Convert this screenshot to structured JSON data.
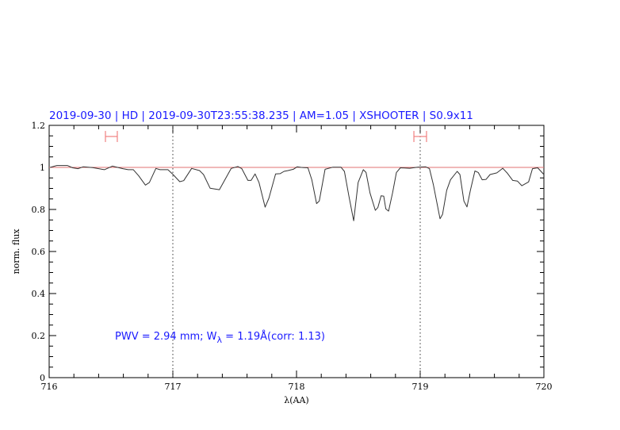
{
  "chart_data": {
    "type": "line",
    "title": "2019-09-30 | HD | 2019-09-30T23:55:38.235 | AM=1.05 | XSHOOTER | S0.9x11",
    "xlabel": "λ(AA)",
    "ylabel": "norm. flux",
    "xlim": [
      716,
      720
    ],
    "ylim": [
      0,
      1.2
    ],
    "x_ticks": [
      "716",
      "717",
      "718",
      "719",
      "720"
    ],
    "y_ticks": [
      "0",
      "0.2",
      "0.4",
      "0.6",
      "0.8",
      "1",
      "1.2"
    ],
    "grid": false,
    "reference_line_y": 1.0,
    "vertical_markers_x": [
      717,
      719
    ],
    "error_bars": [
      {
        "x_from": 716.455,
        "x_to": 716.551,
        "y": 1.147
      },
      {
        "x_from": 718.949,
        "x_to": 719.051,
        "y": 1.147
      }
    ],
    "annotation": {
      "prefix": "PWV = 2.94 mm; W",
      "subscript": "λ",
      "suffix": " = 1.19Å(corr: 1.13)"
    },
    "colors": {
      "title": "#1a1aff",
      "curve": "#333333",
      "reference": "#e07070",
      "error_bars": "#f08080"
    },
    "series": [
      {
        "x": [
          716.008,
          716.062,
          716.147,
          716.19,
          716.233,
          716.276,
          716.351,
          716.447,
          716.511,
          716.596,
          716.639,
          716.681,
          716.724,
          716.778,
          716.81,
          716.863,
          716.896,
          716.96,
          717.002,
          717.056,
          717.088,
          717.152,
          717.216,
          717.248,
          717.301,
          717.376,
          717.472,
          717.526,
          717.558,
          717.607,
          717.633,
          717.665,
          717.697,
          717.746,
          717.776,
          717.831,
          717.867,
          717.899,
          717.931,
          717.974,
          718.006,
          718.038,
          718.092,
          718.124,
          718.162,
          718.184,
          718.231,
          718.295,
          718.359,
          718.387,
          718.423,
          718.462,
          718.498,
          718.54,
          718.562,
          718.594,
          718.637,
          718.658,
          718.684,
          718.705,
          718.722,
          718.744,
          718.776,
          718.808,
          718.84,
          718.915,
          718.979,
          719.043,
          719.075,
          719.107,
          719.16,
          719.181,
          719.214,
          719.245,
          719.299,
          719.321,
          719.353,
          719.378,
          719.406,
          719.442,
          719.469,
          719.501,
          719.533,
          719.565,
          719.62,
          719.667,
          719.705,
          719.748,
          719.786,
          719.822,
          719.876,
          719.908,
          719.95,
          720.0
        ],
        "y": [
          1.0,
          1.009,
          1.009,
          0.998,
          0.994,
          1.003,
          0.999,
          0.989,
          1.006,
          0.994,
          0.989,
          0.989,
          0.96,
          0.916,
          0.928,
          0.995,
          0.989,
          0.989,
          0.966,
          0.932,
          0.937,
          0.995,
          0.985,
          0.966,
          0.901,
          0.894,
          0.995,
          1.004,
          0.994,
          0.938,
          0.938,
          0.969,
          0.928,
          0.811,
          0.853,
          0.969,
          0.97,
          0.981,
          0.985,
          0.991,
          1.003,
          1.0,
          0.998,
          0.941,
          0.828,
          0.84,
          0.991,
          1.001,
          1.001,
          0.981,
          0.865,
          0.746,
          0.928,
          0.989,
          0.976,
          0.878,
          0.796,
          0.809,
          0.865,
          0.863,
          0.803,
          0.792,
          0.878,
          0.976,
          0.998,
          0.996,
          1.001,
          1.003,
          0.994,
          0.916,
          0.756,
          0.777,
          0.891,
          0.941,
          0.981,
          0.966,
          0.84,
          0.812,
          0.891,
          0.983,
          0.976,
          0.941,
          0.943,
          0.966,
          0.974,
          0.996,
          0.972,
          0.938,
          0.935,
          0.913,
          0.931,
          0.994,
          0.998,
          0.966
        ]
      }
    ]
  }
}
